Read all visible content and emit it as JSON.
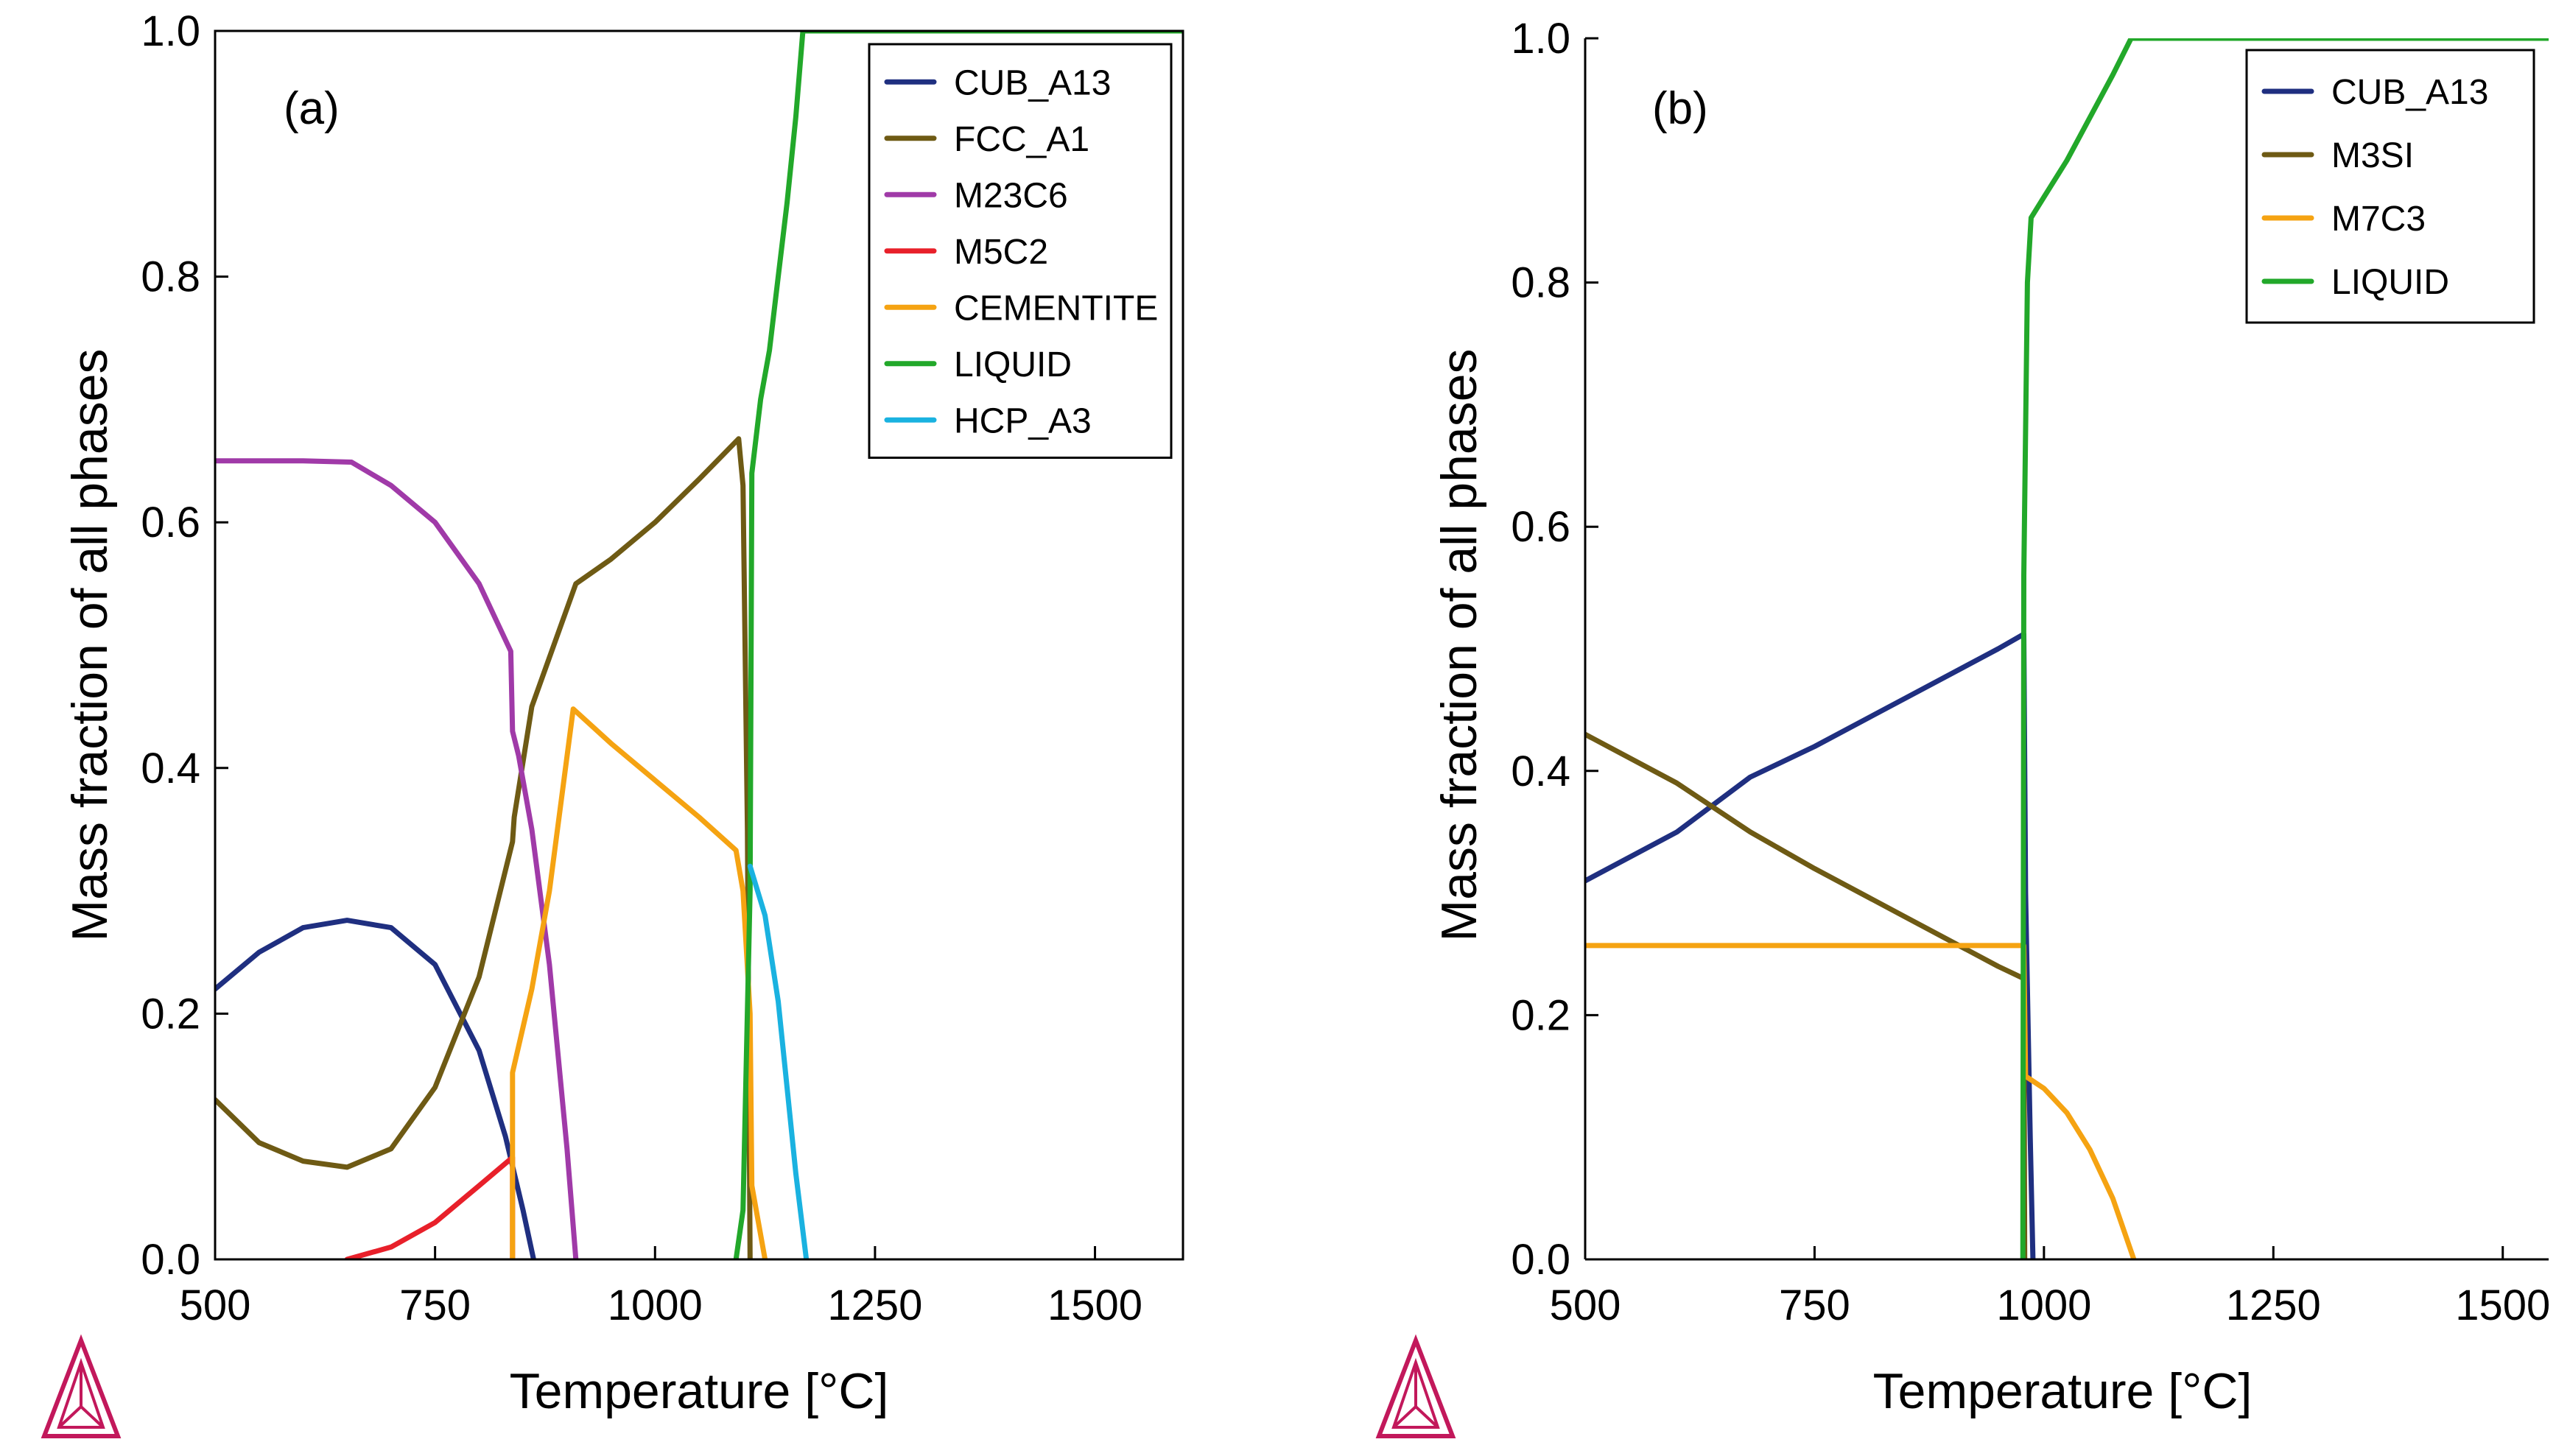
{
  "figure": {
    "logo": "thermo-calc-triangle-icon"
  },
  "colors": {
    "CUB_A13": "#1f2f80",
    "FCC_A1": "#6e5a14",
    "M3SI": "#6e5a14",
    "M23C6": "#a03aa8",
    "M5C2": "#e8202a",
    "CEMENTITE": "#f5a312",
    "M7C3": "#f5a312",
    "LIQUID": "#22a82a",
    "HCP_A3": "#1ab2e0",
    "logo": "#c2185b"
  },
  "chart_data": [
    {
      "type": "line",
      "panel_label": "(a)",
      "xlabel": "Temperature   [°C]",
      "ylabel": "Mass fraction of all phases",
      "xlim": [
        500,
        1600
      ],
      "ylim": [
        0,
        1
      ],
      "xticks": [
        500,
        750,
        1000,
        1250,
        1500
      ],
      "xtick_labels": [
        "500",
        "750",
        "1000",
        "1250",
        "1500"
      ],
      "yticks": [
        0,
        0.2,
        0.4,
        0.6,
        0.8,
        1.0
      ],
      "ytick_labels": [
        "0.0",
        "0.2",
        "0.4",
        "0.6",
        "0.8",
        "1.0"
      ],
      "legend_position": "top-right",
      "series": [
        {
          "name": "CUB_A13",
          "x": [
            500,
            550,
            600,
            650,
            700,
            750,
            800,
            830,
            850,
            862
          ],
          "y": [
            0.22,
            0.25,
            0.27,
            0.276,
            0.27,
            0.24,
            0.17,
            0.1,
            0.04,
            0
          ]
        },
        {
          "name": "FCC_A1",
          "x": [
            500,
            550,
            600,
            650,
            700,
            750,
            800,
            838,
            840,
            860,
            880,
            910,
            950,
            1000,
            1050,
            1095,
            1100,
            1105,
            1108
          ],
          "y": [
            0.13,
            0.095,
            0.08,
            0.075,
            0.09,
            0.14,
            0.23,
            0.34,
            0.36,
            0.45,
            0.49,
            0.55,
            0.57,
            0.6,
            0.635,
            0.668,
            0.63,
            0.35,
            0
          ]
        },
        {
          "name": "M23C6",
          "x": [
            500,
            550,
            600,
            655,
            700,
            750,
            800,
            836,
            838,
            845,
            860,
            880,
            900,
            910
          ],
          "y": [
            0.65,
            0.65,
            0.65,
            0.649,
            0.63,
            0.6,
            0.55,
            0.495,
            0.43,
            0.41,
            0.35,
            0.24,
            0.09,
            0
          ]
        },
        {
          "name": "M5C2",
          "x": [
            650,
            700,
            750,
            800,
            838,
            838
          ],
          "y": [
            0,
            0.01,
            0.03,
            0.06,
            0.083,
            0
          ]
        },
        {
          "name": "CEMENTITE",
          "x": [
            838,
            838,
            860,
            880,
            907,
            950,
            1000,
            1050,
            1092,
            1100,
            1108,
            1110,
            1125
          ],
          "y": [
            0,
            0.152,
            0.22,
            0.3,
            0.448,
            0.42,
            0.39,
            0.36,
            0.333,
            0.3,
            0.2,
            0.06,
            0
          ]
        },
        {
          "name": "LIQUID",
          "x": [
            1092,
            1100,
            1108,
            1110,
            1120,
            1130,
            1140,
            1150,
            1160,
            1168,
            1600
          ],
          "y": [
            0,
            0.04,
            0.3,
            0.64,
            0.7,
            0.74,
            0.8,
            0.86,
            0.93,
            1.0,
            1.0
          ]
        },
        {
          "name": "HCP_A3",
          "x": [
            1108,
            1125,
            1140,
            1150,
            1160,
            1172
          ],
          "y": [
            0.32,
            0.28,
            0.21,
            0.14,
            0.07,
            0
          ]
        }
      ]
    },
    {
      "type": "line",
      "panel_label": "(b)",
      "xlabel": "Temperature   [°C]",
      "ylabel": "Mass fraction of all phases",
      "xlim": [
        500,
        1550
      ],
      "ylim": [
        0,
        1
      ],
      "xticks": [
        500,
        750,
        1000,
        1250,
        1500
      ],
      "xtick_labels": [
        "500",
        "750",
        "1000",
        "1250",
        "1500"
      ],
      "yticks": [
        0,
        0.2,
        0.4,
        0.6,
        0.8,
        1.0
      ],
      "ytick_labels": [
        "0.0",
        "0.2",
        "0.4",
        "0.6",
        "0.8",
        "1.0"
      ],
      "legend_position": "top-right",
      "series": [
        {
          "name": "CUB_A13",
          "x": [
            500,
            600,
            680,
            750,
            850,
            950,
            978,
            980,
            985,
            988
          ],
          "y": [
            0.31,
            0.35,
            0.395,
            0.42,
            0.46,
            0.5,
            0.512,
            0.3,
            0.1,
            0
          ]
        },
        {
          "name": "M3SI",
          "x": [
            500,
            600,
            680,
            750,
            850,
            950,
            978,
            979
          ],
          "y": [
            0.43,
            0.39,
            0.35,
            0.32,
            0.28,
            0.24,
            0.23,
            0
          ]
        },
        {
          "name": "M7C3",
          "x": [
            500,
            978,
            980,
            1000,
            1025,
            1050,
            1075,
            1098
          ],
          "y": [
            0.257,
            0.257,
            0.15,
            0.14,
            0.12,
            0.09,
            0.05,
            0
          ]
        },
        {
          "name": "LIQUID",
          "x": [
            977,
            978,
            982,
            986,
            1000,
            1025,
            1050,
            1075,
            1095,
            1550
          ],
          "y": [
            0,
            0.56,
            0.8,
            0.853,
            0.87,
            0.9,
            0.935,
            0.97,
            1.0,
            1.0
          ]
        }
      ]
    }
  ]
}
